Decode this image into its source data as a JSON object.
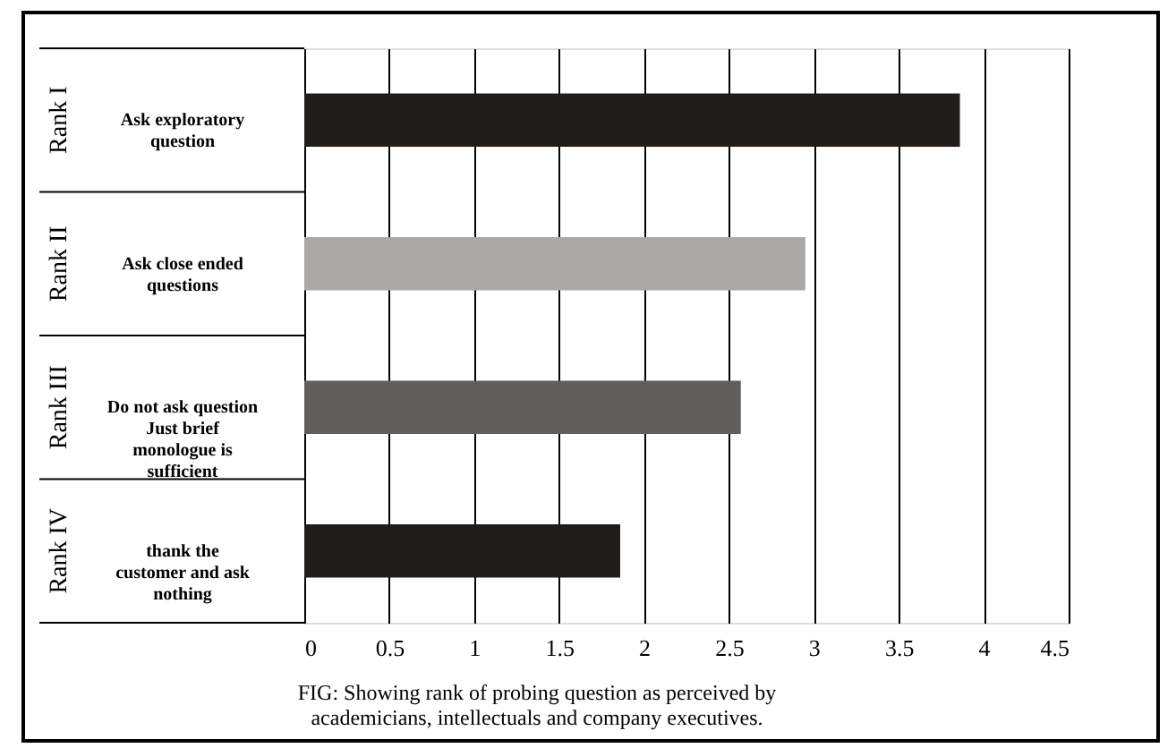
{
  "chart_data": {
    "type": "bar",
    "orientation": "horizontal",
    "categories": [
      "Ask exploratory\nquestion",
      "Ask close ended\nquestions",
      "Do not ask question\nJust brief\nmonologue is\nsufficient",
      "thank the\ncustomer and ask\nnothing"
    ],
    "values": [
      3.86,
      2.95,
      2.57,
      1.86
    ],
    "colors": [
      "#201c19",
      "#aaa9a7",
      "#625e5c",
      "#201c19"
    ],
    "xlim": [
      0,
      4.5
    ],
    "xticks": [
      0,
      0.5,
      1,
      1.5,
      2,
      2.5,
      3,
      3.5,
      4,
      4.5
    ],
    "grid": "x",
    "tick_labels": "x",
    "annotations": [
      "Rank I",
      "Rank II",
      "Rank III",
      "Rank IV",
      "FIG: Showing rank of probing question as perceived by\nacademicians, intellectuals and company executives."
    ]
  }
}
